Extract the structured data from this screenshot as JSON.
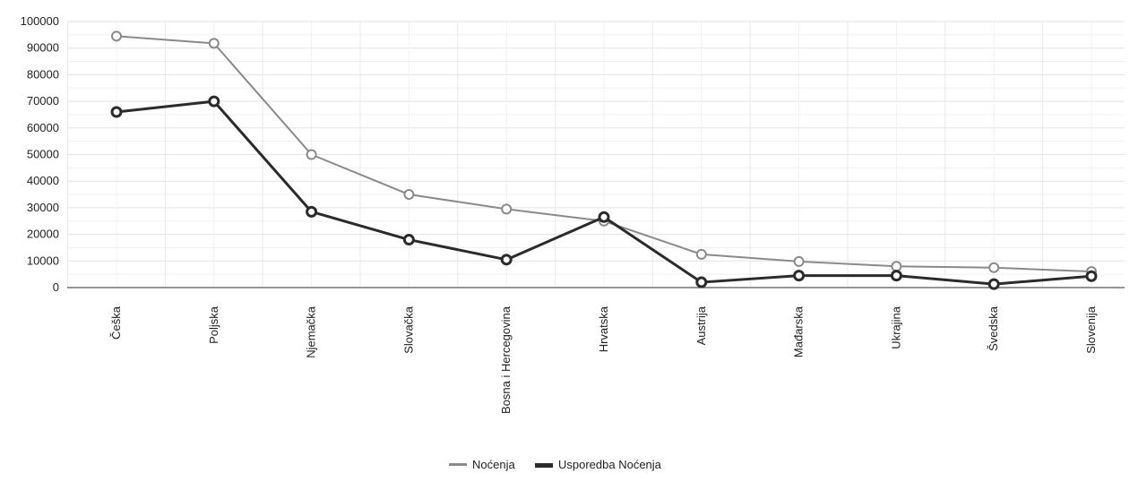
{
  "chart_data": {
    "type": "line",
    "title": "",
    "xlabel": "",
    "ylabel": "",
    "categories": [
      "Češka",
      "Poljska",
      "Njemačka",
      "Slovačka",
      "Bosna i Hercegovina",
      "Hrvatska",
      "Austrija",
      "Mađarska",
      "Ukrajina",
      "Švedska",
      "Slovenija"
    ],
    "series": [
      {
        "name": "Noćenja",
        "color": "#8a8a8a",
        "values": [
          94500,
          91800,
          50000,
          35000,
          29500,
          25000,
          12500,
          9800,
          8000,
          7500,
          6000
        ]
      },
      {
        "name": "Usporedba Noćenja",
        "color": "#2b2b2b",
        "values": [
          66000,
          70000,
          28500,
          18000,
          10500,
          26500,
          2000,
          4500,
          4500,
          1300,
          4300
        ]
      }
    ],
    "ylim": [
      0,
      100000
    ],
    "yticks": [
      "0",
      "10000",
      "20000",
      "30000",
      "40000",
      "50000",
      "60000",
      "70000",
      "80000",
      "90000",
      "100000"
    ],
    "grid": true,
    "legend_position": "bottom-center"
  }
}
